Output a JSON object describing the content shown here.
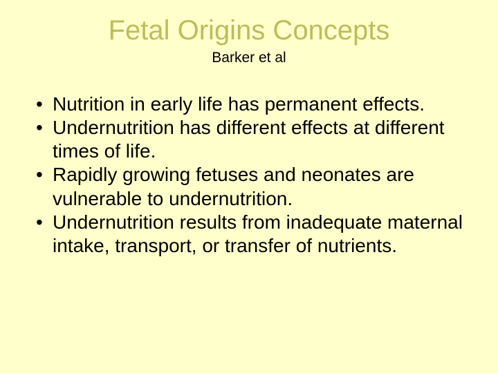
{
  "background_color": "#ffffcc",
  "title": {
    "text": "Fetal Origins Concepts",
    "color": "#bdbd5a",
    "fontsize": 40,
    "font_family": "Arial",
    "align": "center"
  },
  "subtitle": {
    "text": "Barker et al",
    "color": "#000000",
    "fontsize": 21,
    "font_family": "Arial",
    "align": "center"
  },
  "bullets": {
    "color": "#000000",
    "fontsize": 28,
    "font_family": "Arial",
    "marker": "•",
    "items": [
      "Nutrition in early life has permanent effects.",
      "Undernutrition has different effects at different times of life.",
      "Rapidly growing fetuses and neonates are vulnerable to undernutrition.",
      "Undernutrition results from inadequate maternal intake, transport, or transfer of nutrients."
    ]
  }
}
